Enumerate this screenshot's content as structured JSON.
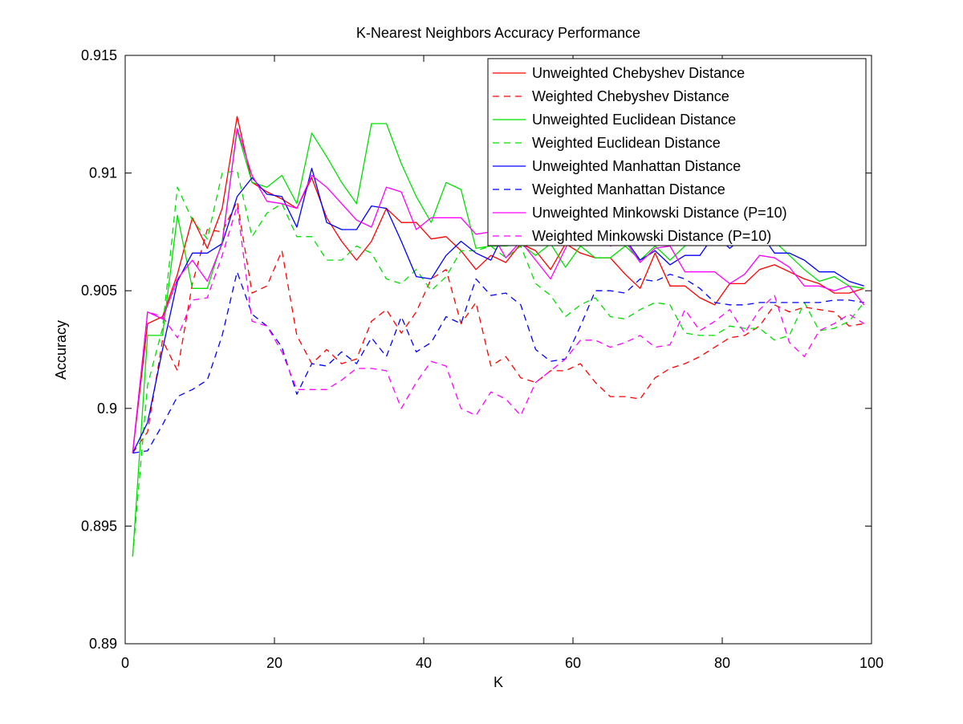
{
  "chart_data": {
    "type": "line",
    "title": "K-Nearest Neighbors Accuracy Performance",
    "xlabel": "K",
    "ylabel": "Accuracy",
    "xlim": [
      0,
      100
    ],
    "ylim": [
      0.89,
      0.915
    ],
    "xticks": [
      0,
      20,
      40,
      60,
      80,
      100
    ],
    "yticks": [
      0.89,
      0.895,
      0.9,
      0.905,
      0.91,
      0.915
    ],
    "xtick_labels": [
      "0",
      "20",
      "40",
      "60",
      "80",
      "100"
    ],
    "ytick_labels": [
      "0.89",
      "0.895",
      "0.9",
      "0.905",
      "0.91",
      "0.915"
    ],
    "grid": false,
    "legend_position": "top-right",
    "x": [
      1,
      3,
      5,
      7,
      9,
      11,
      13,
      15,
      17,
      19,
      21,
      23,
      25,
      27,
      29,
      31,
      33,
      35,
      37,
      39,
      41,
      43,
      45,
      47,
      49,
      51,
      53,
      55,
      57,
      59,
      61,
      63,
      65,
      67,
      69,
      71,
      73,
      75,
      77,
      79,
      81,
      83,
      85,
      87,
      89,
      91,
      93,
      95,
      97,
      99
    ],
    "series": [
      {
        "name": "Unweighted Chebyshev Distance",
        "color": "#ff0000",
        "style": "solid",
        "values": [
          0.8981,
          0.9036,
          0.9039,
          0.9057,
          0.9081,
          0.9068,
          0.9085,
          0.9124,
          0.9096,
          0.9092,
          0.9089,
          0.9085,
          0.9098,
          0.9081,
          0.9071,
          0.9063,
          0.9071,
          0.9085,
          0.9079,
          0.9079,
          0.9072,
          0.9073,
          0.9067,
          0.9059,
          0.9065,
          0.9062,
          0.907,
          0.9067,
          0.9059,
          0.907,
          0.9066,
          0.9064,
          0.9064,
          0.9057,
          0.9051,
          0.9066,
          0.9052,
          0.9052,
          0.9047,
          0.9044,
          0.9053,
          0.9053,
          0.9059,
          0.9061,
          0.9058,
          0.9055,
          0.9053,
          0.9049,
          0.9049,
          0.9051
        ]
      },
      {
        "name": "Weighted Chebyshev Distance",
        "color": "#ff0000",
        "style": "dashed",
        "values": [
          0.8981,
          0.899,
          0.9029,
          0.9016,
          0.9053,
          0.9076,
          0.9075,
          0.9088,
          0.9049,
          0.9052,
          0.9067,
          0.9031,
          0.9019,
          0.9025,
          0.9019,
          0.9021,
          0.9037,
          0.9042,
          0.9032,
          0.9041,
          0.9055,
          0.9059,
          0.9036,
          0.9045,
          0.9018,
          0.9022,
          0.9013,
          0.9011,
          0.9016,
          0.9016,
          0.9019,
          0.9011,
          0.9005,
          0.9005,
          0.9004,
          0.9013,
          0.9017,
          0.9019,
          0.9022,
          0.9026,
          0.903,
          0.9031,
          0.9035,
          0.9044,
          0.9041,
          0.9043,
          0.9042,
          0.9041,
          0.9035,
          0.9036
        ]
      },
      {
        "name": "Unweighted Euclidean Distance",
        "color": "#00e000",
        "style": "solid",
        "values": [
          0.8937,
          0.9031,
          0.9031,
          0.9082,
          0.9051,
          0.9051,
          0.9071,
          0.9118,
          0.9096,
          0.9094,
          0.9099,
          0.9087,
          0.9117,
          0.9107,
          0.9096,
          0.9087,
          0.9121,
          0.9121,
          0.9104,
          0.909,
          0.9079,
          0.9096,
          0.9093,
          0.9068,
          0.9069,
          0.9069,
          0.907,
          0.9065,
          0.907,
          0.906,
          0.9069,
          0.9064,
          0.9064,
          0.9069,
          0.9063,
          0.9069,
          0.9063,
          0.9069,
          0.9074,
          0.9074,
          0.9077,
          0.9077,
          0.9072,
          0.9071,
          0.9065,
          0.9059,
          0.9054,
          0.9056,
          0.9052,
          0.9051
        ]
      },
      {
        "name": "Weighted Euclidean Distance",
        "color": "#00e000",
        "style": "dashed",
        "values": [
          0.8937,
          0.901,
          0.9034,
          0.9094,
          0.908,
          0.9072,
          0.91,
          0.9101,
          0.9073,
          0.9083,
          0.9087,
          0.9073,
          0.9073,
          0.9063,
          0.9063,
          0.9069,
          0.9066,
          0.9055,
          0.9053,
          0.9059,
          0.905,
          0.9056,
          0.9067,
          0.9067,
          0.9069,
          0.9064,
          0.9069,
          0.9053,
          0.9048,
          0.9039,
          0.9044,
          0.9047,
          0.9039,
          0.9038,
          0.9042,
          0.9045,
          0.9044,
          0.9032,
          0.9031,
          0.9031,
          0.9035,
          0.9034,
          0.9034,
          0.9029,
          0.9031,
          0.9045,
          0.9033,
          0.9034,
          0.9037,
          0.9045
        ]
      },
      {
        "name": "Unweighted Manhattan Distance",
        "color": "#0000ff",
        "style": "solid",
        "values": [
          0.8981,
          0.8994,
          0.9025,
          0.9054,
          0.9066,
          0.9066,
          0.907,
          0.909,
          0.9098,
          0.9091,
          0.909,
          0.9077,
          0.9102,
          0.9079,
          0.9076,
          0.9076,
          0.9086,
          0.9085,
          0.9071,
          0.9056,
          0.9055,
          0.9065,
          0.9071,
          0.9066,
          0.9063,
          0.9076,
          0.9084,
          0.909,
          0.9097,
          0.9085,
          0.9087,
          0.9075,
          0.908,
          0.9072,
          0.9063,
          0.9067,
          0.9061,
          0.9065,
          0.9065,
          0.9074,
          0.9068,
          0.9073,
          0.9075,
          0.9066,
          0.9066,
          0.9063,
          0.9058,
          0.9058,
          0.9054,
          0.9052
        ]
      },
      {
        "name": "Weighted Manhattan Distance",
        "color": "#0000ff",
        "style": "dashed",
        "values": [
          0.8981,
          0.8982,
          0.8993,
          0.9005,
          0.9008,
          0.9012,
          0.9031,
          0.9058,
          0.904,
          0.9035,
          0.9026,
          0.9006,
          0.9019,
          0.9018,
          0.9024,
          0.9019,
          0.903,
          0.9022,
          0.9039,
          0.9024,
          0.9028,
          0.9039,
          0.9036,
          0.9055,
          0.9048,
          0.9049,
          0.9044,
          0.9025,
          0.902,
          0.9021,
          0.9035,
          0.905,
          0.905,
          0.9049,
          0.9055,
          0.9054,
          0.9057,
          0.9055,
          0.9051,
          0.9045,
          0.9044,
          0.9044,
          0.9045,
          0.9045,
          0.9045,
          0.9045,
          0.9045,
          0.9046,
          0.9046,
          0.9045
        ]
      },
      {
        "name": "Unweighted Minkowski Distance (P=10)",
        "color": "#ff00ff",
        "style": "solid",
        "values": [
          0.8981,
          0.9041,
          0.9038,
          0.9055,
          0.9063,
          0.9054,
          0.907,
          0.9119,
          0.9099,
          0.9088,
          0.9087,
          0.9085,
          0.9099,
          0.9094,
          0.9087,
          0.908,
          0.9077,
          0.9094,
          0.9092,
          0.9076,
          0.9081,
          0.9081,
          0.9081,
          0.9074,
          0.9075,
          0.9064,
          0.9071,
          0.9063,
          0.9055,
          0.9068,
          0.9082,
          0.9077,
          0.9069,
          0.9071,
          0.9062,
          0.9068,
          0.9069,
          0.9058,
          0.9058,
          0.9058,
          0.9053,
          0.9057,
          0.9065,
          0.9064,
          0.906,
          0.9052,
          0.9052,
          0.905,
          0.9052,
          0.9044
        ]
      },
      {
        "name": "Weighted Minkowski Distance (P=10)",
        "color": "#ff00ff",
        "style": "dashed",
        "values": [
          0.8981,
          0.9041,
          0.9039,
          0.903,
          0.9046,
          0.9047,
          0.9065,
          0.9086,
          0.9037,
          0.9035,
          0.9024,
          0.9008,
          0.9008,
          0.9008,
          0.9012,
          0.9017,
          0.9017,
          0.9016,
          0.9,
          0.9011,
          0.902,
          0.9018,
          0.9,
          0.8997,
          0.9007,
          0.9004,
          0.8997,
          0.9011,
          0.9016,
          0.9021,
          0.9029,
          0.9029,
          0.9026,
          0.9028,
          0.9031,
          0.9026,
          0.9027,
          0.9042,
          0.9033,
          0.9037,
          0.9042,
          0.9032,
          0.9042,
          0.9048,
          0.9028,
          0.9022,
          0.9033,
          0.9036,
          0.904,
          0.9036
        ]
      }
    ]
  }
}
